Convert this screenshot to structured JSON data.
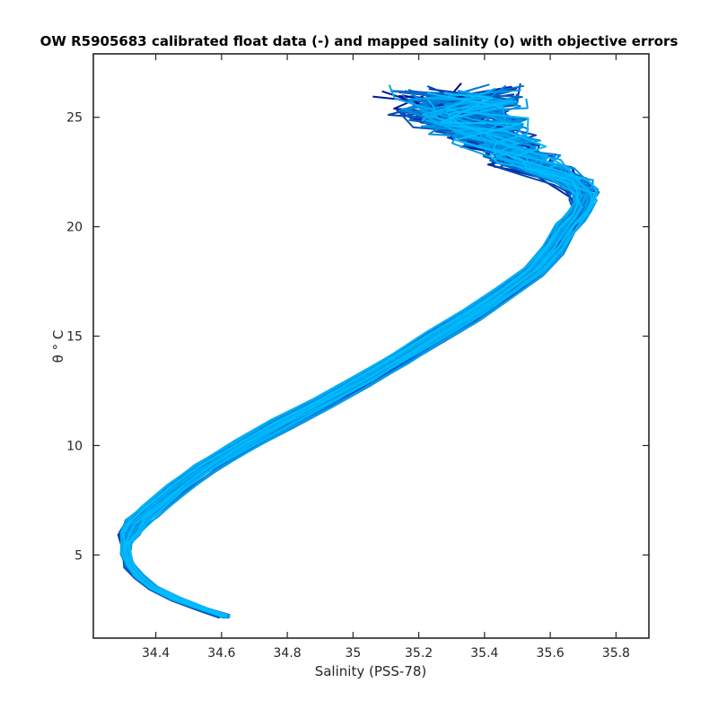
{
  "chart_data": {
    "type": "line",
    "title": "OW R5905683 calibrated float data (-) and mapped salinity (o) with objective errors",
    "xlabel": "Salinity (PSS-78)",
    "ylabel": "θ ° C",
    "xlim": [
      34.21,
      35.9
    ],
    "ylim": [
      1.2,
      27.9
    ],
    "xticks": [
      34.4,
      34.6,
      34.8,
      35,
      35.2,
      35.4,
      35.6,
      35.8
    ],
    "xtick_labels": [
      "34.4",
      "34.6",
      "34.8",
      "35",
      "35.2",
      "35.4",
      "35.6",
      "35.8"
    ],
    "yticks": [
      5,
      10,
      15,
      20,
      25
    ],
    "ytick_labels": [
      "5",
      "10",
      "15",
      "20",
      "25"
    ],
    "grid": false,
    "colors": {
      "early_profiles": "#00008b",
      "late_profiles": "#00bfff",
      "axes": "#262626"
    },
    "base_profile": {
      "theta": [
        2.2,
        2.5,
        3.0,
        3.5,
        4.0,
        4.5,
        5.0,
        5.5,
        6.0,
        6.5,
        7.0,
        8.0,
        9.0,
        10.0,
        11.0,
        12.0,
        13.0,
        14.0,
        15.0,
        16.0,
        17.0,
        18.0,
        19.0,
        20.0,
        20.5,
        21.0,
        21.5,
        22.0,
        22.5,
        23.0,
        23.5,
        24.0,
        24.5,
        25.0,
        25.5,
        26.0
      ],
      "salinity": [
        34.61,
        34.55,
        34.46,
        34.39,
        34.35,
        34.32,
        34.31,
        34.31,
        34.32,
        34.34,
        34.38,
        34.46,
        34.55,
        34.66,
        34.78,
        34.91,
        35.03,
        35.14,
        35.25,
        35.36,
        35.46,
        35.55,
        35.61,
        35.65,
        35.68,
        35.7,
        35.7,
        35.67,
        35.6,
        35.52,
        35.46,
        35.42,
        35.38,
        35.35,
        35.32,
        35.3
      ]
    },
    "series": [
      {
        "profile_count": 70,
        "salinity_spread": 0.03,
        "surface_spread": 0.22
      }
    ]
  }
}
